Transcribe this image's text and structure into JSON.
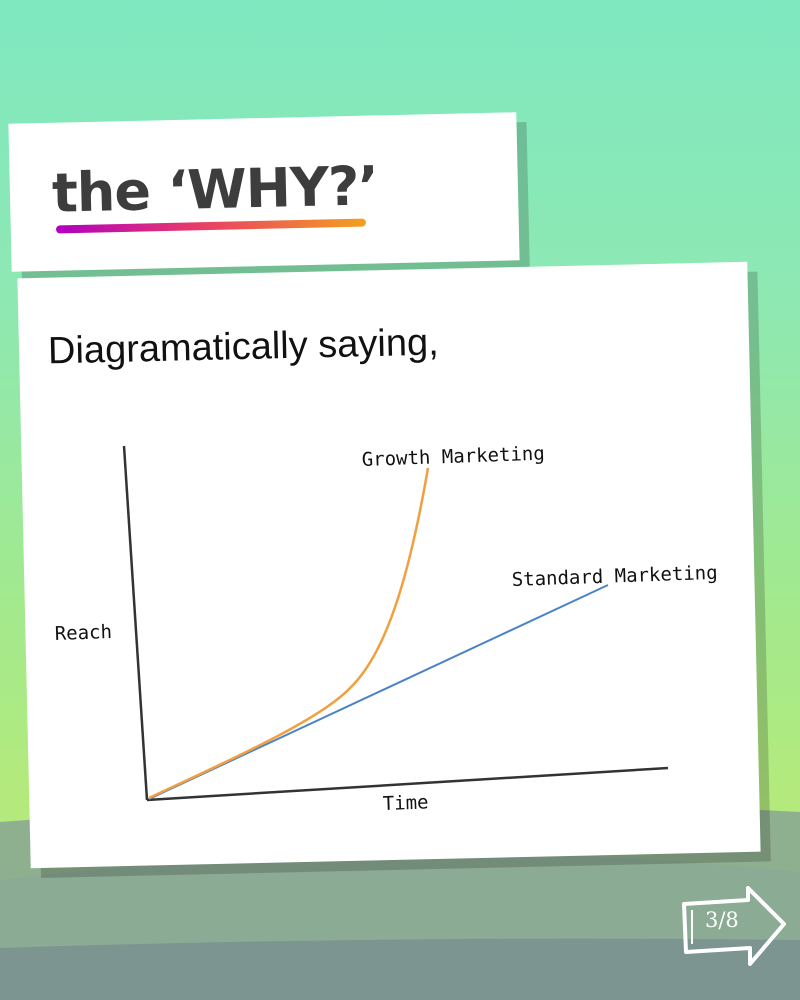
{
  "title": "the ‘WHY?’",
  "subtitle": "Diagramatically saying,",
  "diagram": {
    "y_axis_label": "Reach",
    "x_axis_label": "Time",
    "curves": [
      {
        "label": "Growth Marketing",
        "color": "#f0a040"
      },
      {
        "label": "Standard Marketing",
        "color": "#4a84c4"
      }
    ]
  },
  "pager": {
    "label": "3/8",
    "icon": "arrow-right-icon"
  },
  "colors": {
    "title_text": "#3d3d3d",
    "underline_start": "#b000c0",
    "underline_end": "#f3a01f"
  }
}
